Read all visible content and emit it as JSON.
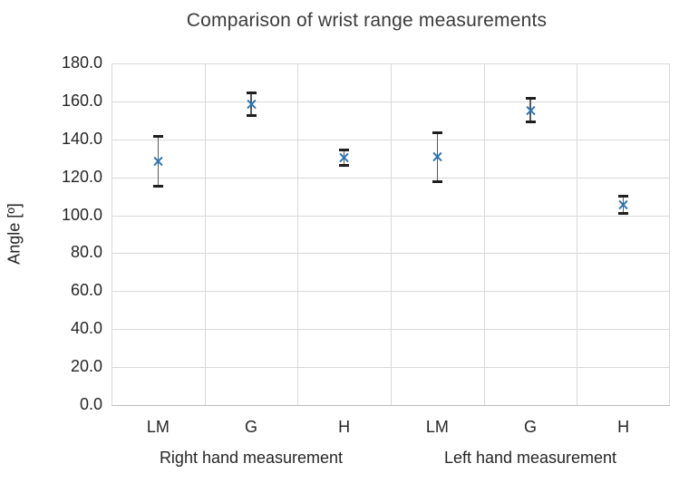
{
  "chart_data": {
    "type": "scatter",
    "title": "Comparison of wrist range measurements",
    "ylabel": "Angle [º]",
    "xlabel": "",
    "ylim": [
      0,
      180
    ],
    "ytick_step": 20,
    "ytick_labels": [
      "0.0",
      "20.0",
      "40.0",
      "60.0",
      "80.0",
      "100.0",
      "120.0",
      "140.0",
      "160.0",
      "180.0"
    ],
    "categories": [
      "LM",
      "G",
      "H",
      "LM",
      "G",
      "H"
    ],
    "group_labels": [
      "Right hand measurement",
      "Left hand measurement"
    ],
    "grid": true,
    "legend": "none",
    "series": [
      {
        "name": "Wrist range",
        "marker": "x",
        "points": [
          {
            "group": "Right hand measurement",
            "category": "LM",
            "value": 128.5,
            "error_low": 115.5,
            "error_high": 141.5
          },
          {
            "group": "Right hand measurement",
            "category": "G",
            "value": 158.5,
            "error_low": 152.5,
            "error_high": 164.5
          },
          {
            "group": "Right hand measurement",
            "category": "H",
            "value": 130.5,
            "error_low": 126.5,
            "error_high": 134.5
          },
          {
            "group": "Left hand measurement",
            "category": "LM",
            "value": 131.0,
            "error_low": 117.5,
            "error_high": 143.5
          },
          {
            "group": "Left hand measurement",
            "category": "G",
            "value": 155.0,
            "error_low": 149.0,
            "error_high": 161.5
          },
          {
            "group": "Left hand measurement",
            "category": "H",
            "value": 105.5,
            "error_low": 101.0,
            "error_high": 110.0
          }
        ]
      }
    ],
    "colors": {
      "marker": "#2E75B6",
      "error_bar_line": "#595959",
      "error_bar_cap": "#1f1f1f",
      "gridline": "#D9D9D9",
      "axis_line": "#BFBFBF",
      "title_text": "#3B3B3B",
      "tick_text": "#262626"
    }
  }
}
